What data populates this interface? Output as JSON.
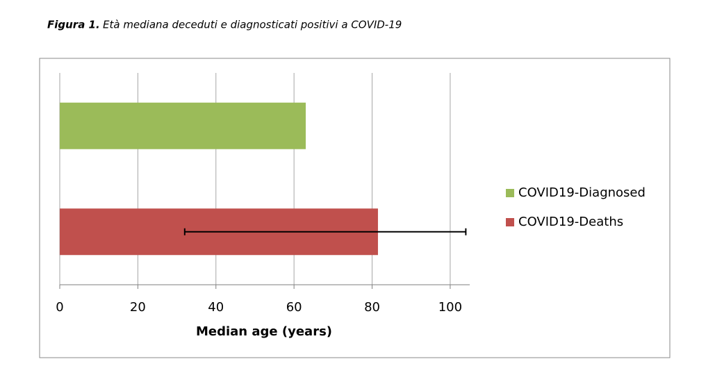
{
  "chart_data": {
    "type": "hbar",
    "title_prefix": "Figura 1.",
    "title": "Età mediana deceduti e diagnosticati positivi a COVID-19",
    "xlabel": "Median age (years)",
    "series": [
      {
        "name": "COVID19-Diagnosed",
        "color": "#9bbb59",
        "values": [
          63
        ]
      },
      {
        "name": "COVID19-Deaths",
        "color": "#c0504d",
        "values": [
          81.5
        ],
        "range": [
          32,
          104
        ]
      }
    ],
    "xlim": [
      0,
      105
    ],
    "xticks": [
      0,
      20,
      40,
      60,
      80,
      100
    ],
    "grid": true,
    "legend": "right"
  }
}
